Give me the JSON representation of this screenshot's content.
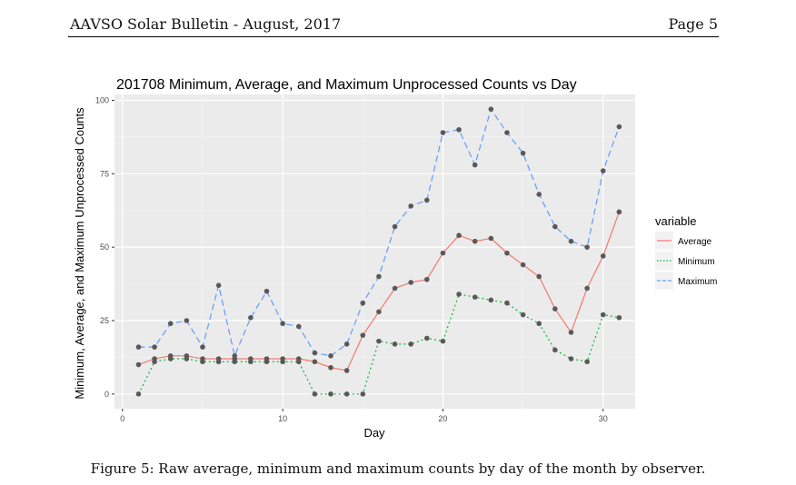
{
  "header": {
    "title": "AAVSO Solar Bulletin - August, 2017",
    "page": "Page 5"
  },
  "caption": "Figure 5: Raw average, minimum and maximum counts by day of the month by observer.",
  "chart_data": {
    "type": "line",
    "title": "201708 Minimum, Average, and Maximum Unprocessed Counts vs Day",
    "xlabel": "Day",
    "ylabel": "Minimum, Average, and Maximum Unprocessed Counts",
    "xlim": [
      -0.5,
      32
    ],
    "ylim": [
      -5,
      102
    ],
    "xticks": [
      0,
      10,
      20,
      30
    ],
    "yticks": [
      0,
      25,
      50,
      75,
      100
    ],
    "grid": true,
    "legend": {
      "title": "variable",
      "placement": "right"
    },
    "x": [
      1,
      2,
      3,
      4,
      5,
      6,
      7,
      8,
      9,
      10,
      11,
      12,
      13,
      14,
      15,
      16,
      17,
      18,
      19,
      20,
      21,
      22,
      23,
      24,
      25,
      26,
      27,
      28,
      29,
      30,
      31
    ],
    "series": [
      {
        "name": "Average",
        "color": "#F8766D",
        "dash": "",
        "values": [
          10,
          12,
          13,
          13,
          12,
          12,
          12,
          12,
          12,
          12,
          12,
          11,
          9,
          8,
          20,
          28,
          36,
          38,
          39,
          48,
          54,
          52,
          53,
          48,
          44,
          40,
          29,
          21,
          36,
          47,
          62
        ]
      },
      {
        "name": "Minimum",
        "color": "#00BA38",
        "dash": "2,3",
        "values": [
          0,
          11,
          12,
          12,
          11,
          11,
          11,
          11,
          11,
          11,
          11,
          0,
          0,
          0,
          0,
          18,
          17,
          17,
          19,
          18,
          34,
          33,
          32,
          31,
          27,
          24,
          15,
          12,
          11,
          27,
          26
        ]
      },
      {
        "name": "Maximum",
        "color": "#619CFF",
        "dash": "7,4",
        "values": [
          16,
          16,
          24,
          25,
          16,
          37,
          13,
          26,
          35,
          24,
          23,
          14,
          13,
          17,
          31,
          40,
          57,
          64,
          66,
          89,
          90,
          78,
          97,
          89,
          82,
          68,
          57,
          52,
          50,
          76,
          91
        ]
      }
    ]
  }
}
